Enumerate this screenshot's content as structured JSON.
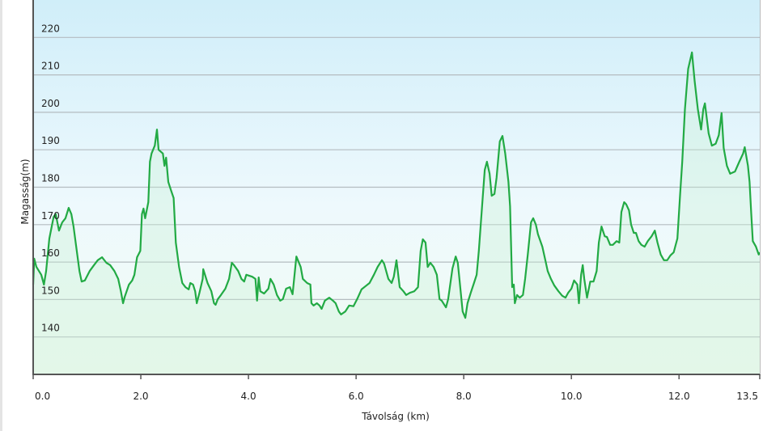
{
  "chart_data": {
    "type": "area",
    "title": "",
    "xlabel": "Távolság  (km)",
    "ylabel": "Magasság(m)",
    "xlim": [
      0,
      13.5
    ],
    "ylim": [
      130,
      230
    ],
    "grid": true,
    "x_ticks": [
      "0.0",
      "2.0",
      "4.0",
      "6.0",
      "8.0",
      "10.0",
      "12.0",
      "13.5"
    ],
    "x_tick_values": [
      0,
      2,
      4,
      6,
      8,
      10,
      12,
      13.5
    ],
    "y_ticks": [
      "140",
      "150",
      "160",
      "170",
      "180",
      "190",
      "200",
      "210",
      "220"
    ],
    "y_tick_values": [
      140,
      150,
      160,
      170,
      180,
      190,
      200,
      210,
      220
    ],
    "colors": {
      "line": "#22aa44",
      "fill": "#c8f0d4",
      "bg_top": "#d0eef9",
      "bg_bottom": "#f1fbf3",
      "grid": "#b4bcc0"
    },
    "series": [
      {
        "name": "Magasság",
        "points": [
          [
            0.0,
            154.0
          ],
          [
            0.02,
            160.9
          ],
          [
            0.06,
            158.7
          ],
          [
            0.15,
            156.6
          ],
          [
            0.2,
            154.0
          ],
          [
            0.24,
            157.6
          ],
          [
            0.3,
            166.3
          ],
          [
            0.38,
            172.1
          ],
          [
            0.42,
            172.8
          ],
          [
            0.48,
            168.4
          ],
          [
            0.54,
            170.6
          ],
          [
            0.6,
            171.7
          ],
          [
            0.66,
            174.5
          ],
          [
            0.71,
            172.8
          ],
          [
            0.75,
            169.5
          ],
          [
            0.8,
            164.1
          ],
          [
            0.86,
            157.6
          ],
          [
            0.9,
            154.8
          ],
          [
            0.96,
            155.1
          ],
          [
            1.05,
            157.6
          ],
          [
            1.13,
            159.2
          ],
          [
            1.2,
            160.5
          ],
          [
            1.28,
            161.3
          ],
          [
            1.36,
            159.8
          ],
          [
            1.43,
            159.2
          ],
          [
            1.51,
            157.6
          ],
          [
            1.58,
            155.5
          ],
          [
            1.63,
            152.2
          ],
          [
            1.67,
            149.0
          ],
          [
            1.7,
            150.7
          ],
          [
            1.78,
            154.0
          ],
          [
            1.84,
            155.1
          ],
          [
            1.88,
            156.6
          ],
          [
            1.93,
            161.3
          ],
          [
            1.99,
            163.0
          ],
          [
            2.02,
            172.8
          ],
          [
            2.05,
            174.3
          ],
          [
            2.08,
            171.7
          ],
          [
            2.14,
            176.0
          ],
          [
            2.17,
            186.8
          ],
          [
            2.2,
            189.0
          ],
          [
            2.26,
            191.1
          ],
          [
            2.3,
            195.4
          ],
          [
            2.33,
            190.0
          ],
          [
            2.41,
            189.0
          ],
          [
            2.44,
            185.7
          ],
          [
            2.47,
            187.9
          ],
          [
            2.51,
            181.4
          ],
          [
            2.56,
            179.2
          ],
          [
            2.61,
            177.1
          ],
          [
            2.65,
            165.2
          ],
          [
            2.71,
            158.7
          ],
          [
            2.77,
            154.4
          ],
          [
            2.83,
            153.3
          ],
          [
            2.89,
            152.7
          ],
          [
            2.92,
            154.4
          ],
          [
            2.97,
            154.0
          ],
          [
            3.01,
            152.2
          ],
          [
            3.04,
            149.0
          ],
          [
            3.09,
            151.8
          ],
          [
            3.15,
            155.5
          ],
          [
            3.16,
            158.1
          ],
          [
            3.24,
            154.4
          ],
          [
            3.31,
            152.2
          ],
          [
            3.36,
            149.0
          ],
          [
            3.39,
            148.6
          ],
          [
            3.43,
            150.1
          ],
          [
            3.49,
            151.2
          ],
          [
            3.57,
            152.9
          ],
          [
            3.64,
            155.5
          ],
          [
            3.69,
            159.8
          ],
          [
            3.73,
            159.2
          ],
          [
            3.81,
            157.6
          ],
          [
            3.87,
            155.5
          ],
          [
            3.92,
            154.8
          ],
          [
            3.96,
            156.6
          ],
          [
            4.07,
            156.1
          ],
          [
            4.13,
            155.5
          ],
          [
            4.16,
            149.7
          ],
          [
            4.19,
            155.9
          ],
          [
            4.22,
            152.2
          ],
          [
            4.29,
            151.6
          ],
          [
            4.37,
            152.9
          ],
          [
            4.41,
            155.5
          ],
          [
            4.47,
            154.0
          ],
          [
            4.53,
            151.2
          ],
          [
            4.59,
            149.7
          ],
          [
            4.64,
            150.1
          ],
          [
            4.7,
            152.9
          ],
          [
            4.77,
            153.3
          ],
          [
            4.82,
            151.4
          ],
          [
            4.89,
            161.5
          ],
          [
            4.97,
            158.7
          ],
          [
            5.01,
            155.5
          ],
          [
            5.09,
            154.4
          ],
          [
            5.15,
            154.0
          ],
          [
            5.17,
            149.0
          ],
          [
            5.21,
            148.4
          ],
          [
            5.27,
            149.0
          ],
          [
            5.32,
            148.4
          ],
          [
            5.36,
            147.5
          ],
          [
            5.42,
            149.7
          ],
          [
            5.5,
            150.5
          ],
          [
            5.57,
            149.7
          ],
          [
            5.62,
            149.0
          ],
          [
            5.68,
            146.8
          ],
          [
            5.72,
            146.0
          ],
          [
            5.8,
            146.8
          ],
          [
            5.87,
            148.4
          ],
          [
            5.95,
            148.2
          ],
          [
            6.02,
            150.1
          ],
          [
            6.1,
            152.7
          ],
          [
            6.17,
            153.5
          ],
          [
            6.25,
            154.4
          ],
          [
            6.33,
            156.6
          ],
          [
            6.4,
            158.7
          ],
          [
            6.48,
            160.5
          ],
          [
            6.52,
            159.6
          ],
          [
            6.6,
            155.5
          ],
          [
            6.66,
            154.4
          ],
          [
            6.7,
            156.1
          ],
          [
            6.75,
            160.5
          ],
          [
            6.81,
            153.3
          ],
          [
            6.88,
            152.2
          ],
          [
            6.93,
            151.2
          ],
          [
            7.0,
            151.8
          ],
          [
            7.08,
            152.2
          ],
          [
            7.15,
            153.3
          ],
          [
            7.2,
            163.0
          ],
          [
            7.24,
            166.1
          ],
          [
            7.29,
            165.2
          ],
          [
            7.33,
            158.7
          ],
          [
            7.38,
            159.8
          ],
          [
            7.44,
            158.7
          ],
          [
            7.5,
            156.6
          ],
          [
            7.55,
            150.1
          ],
          [
            7.59,
            149.7
          ],
          [
            7.67,
            147.9
          ],
          [
            7.71,
            150.1
          ],
          [
            7.79,
            158.3
          ],
          [
            7.85,
            161.5
          ],
          [
            7.89,
            159.8
          ],
          [
            7.92,
            155.5
          ],
          [
            7.98,
            146.8
          ],
          [
            8.03,
            145.1
          ],
          [
            8.07,
            149.0
          ],
          [
            8.13,
            151.8
          ],
          [
            8.19,
            154.4
          ],
          [
            8.24,
            156.6
          ],
          [
            8.28,
            163.0
          ],
          [
            8.34,
            174.9
          ],
          [
            8.39,
            184.6
          ],
          [
            8.43,
            186.8
          ],
          [
            8.48,
            183.6
          ],
          [
            8.52,
            177.7
          ],
          [
            8.57,
            178.2
          ],
          [
            8.61,
            182.5
          ],
          [
            8.67,
            192.2
          ],
          [
            8.72,
            193.7
          ],
          [
            8.77,
            189.0
          ],
          [
            8.83,
            181.4
          ],
          [
            8.86,
            174.9
          ],
          [
            8.9,
            153.3
          ],
          [
            8.93,
            154.0
          ],
          [
            8.95,
            149.0
          ],
          [
            8.99,
            151.2
          ],
          [
            9.04,
            150.5
          ],
          [
            9.1,
            151.2
          ],
          [
            9.14,
            155.5
          ],
          [
            9.19,
            162.0
          ],
          [
            9.25,
            170.6
          ],
          [
            9.29,
            171.7
          ],
          [
            9.34,
            170.0
          ],
          [
            9.38,
            167.4
          ],
          [
            9.46,
            164.1
          ],
          [
            9.52,
            160.2
          ],
          [
            9.56,
            157.6
          ],
          [
            9.62,
            155.5
          ],
          [
            9.68,
            153.8
          ],
          [
            9.76,
            152.2
          ],
          [
            9.83,
            151.0
          ],
          [
            9.89,
            150.5
          ],
          [
            9.94,
            151.8
          ],
          [
            10.0,
            152.9
          ],
          [
            10.05,
            155.1
          ],
          [
            10.11,
            154.0
          ],
          [
            10.14,
            149.0
          ],
          [
            10.18,
            156.6
          ],
          [
            10.21,
            159.2
          ],
          [
            10.24,
            155.5
          ],
          [
            10.29,
            150.5
          ],
          [
            10.35,
            154.8
          ],
          [
            10.41,
            154.8
          ],
          [
            10.47,
            157.6
          ],
          [
            10.51,
            165.2
          ],
          [
            10.56,
            169.5
          ],
          [
            10.62,
            166.9
          ],
          [
            10.66,
            166.7
          ],
          [
            10.72,
            164.6
          ],
          [
            10.77,
            164.6
          ],
          [
            10.84,
            165.6
          ],
          [
            10.89,
            165.2
          ],
          [
            10.93,
            173.4
          ],
          [
            10.98,
            176.0
          ],
          [
            11.02,
            175.4
          ],
          [
            11.07,
            173.8
          ],
          [
            11.11,
            170.0
          ],
          [
            11.16,
            167.8
          ],
          [
            11.2,
            167.8
          ],
          [
            11.25,
            165.6
          ],
          [
            11.3,
            164.6
          ],
          [
            11.36,
            164.1
          ],
          [
            11.42,
            165.6
          ],
          [
            11.49,
            166.9
          ],
          [
            11.55,
            168.4
          ],
          [
            11.6,
            165.2
          ],
          [
            11.66,
            162.0
          ],
          [
            11.72,
            160.5
          ],
          [
            11.78,
            160.5
          ],
          [
            11.84,
            161.8
          ],
          [
            11.9,
            162.6
          ],
          [
            11.97,
            166.3
          ],
          [
            12.02,
            178.2
          ],
          [
            12.06,
            186.8
          ],
          [
            12.11,
            200.8
          ],
          [
            12.17,
            211.6
          ],
          [
            12.24,
            216.0
          ],
          [
            12.29,
            208.4
          ],
          [
            12.35,
            200.8
          ],
          [
            12.41,
            195.4
          ],
          [
            12.45,
            200.8
          ],
          [
            12.48,
            202.4
          ],
          [
            12.55,
            194.4
          ],
          [
            12.61,
            191.1
          ],
          [
            12.68,
            191.6
          ],
          [
            12.74,
            193.9
          ],
          [
            12.79,
            199.8
          ],
          [
            12.83,
            190.5
          ],
          [
            12.89,
            185.7
          ],
          [
            12.95,
            183.6
          ],
          [
            13.04,
            184.2
          ],
          [
            13.12,
            186.8
          ],
          [
            13.19,
            189.0
          ],
          [
            13.22,
            190.7
          ],
          [
            13.28,
            185.7
          ],
          [
            13.31,
            181.4
          ],
          [
            13.34,
            173.2
          ],
          [
            13.37,
            165.6
          ],
          [
            13.43,
            164.1
          ],
          [
            13.48,
            162.0
          ],
          [
            13.5,
            162.6
          ]
        ]
      }
    ]
  }
}
